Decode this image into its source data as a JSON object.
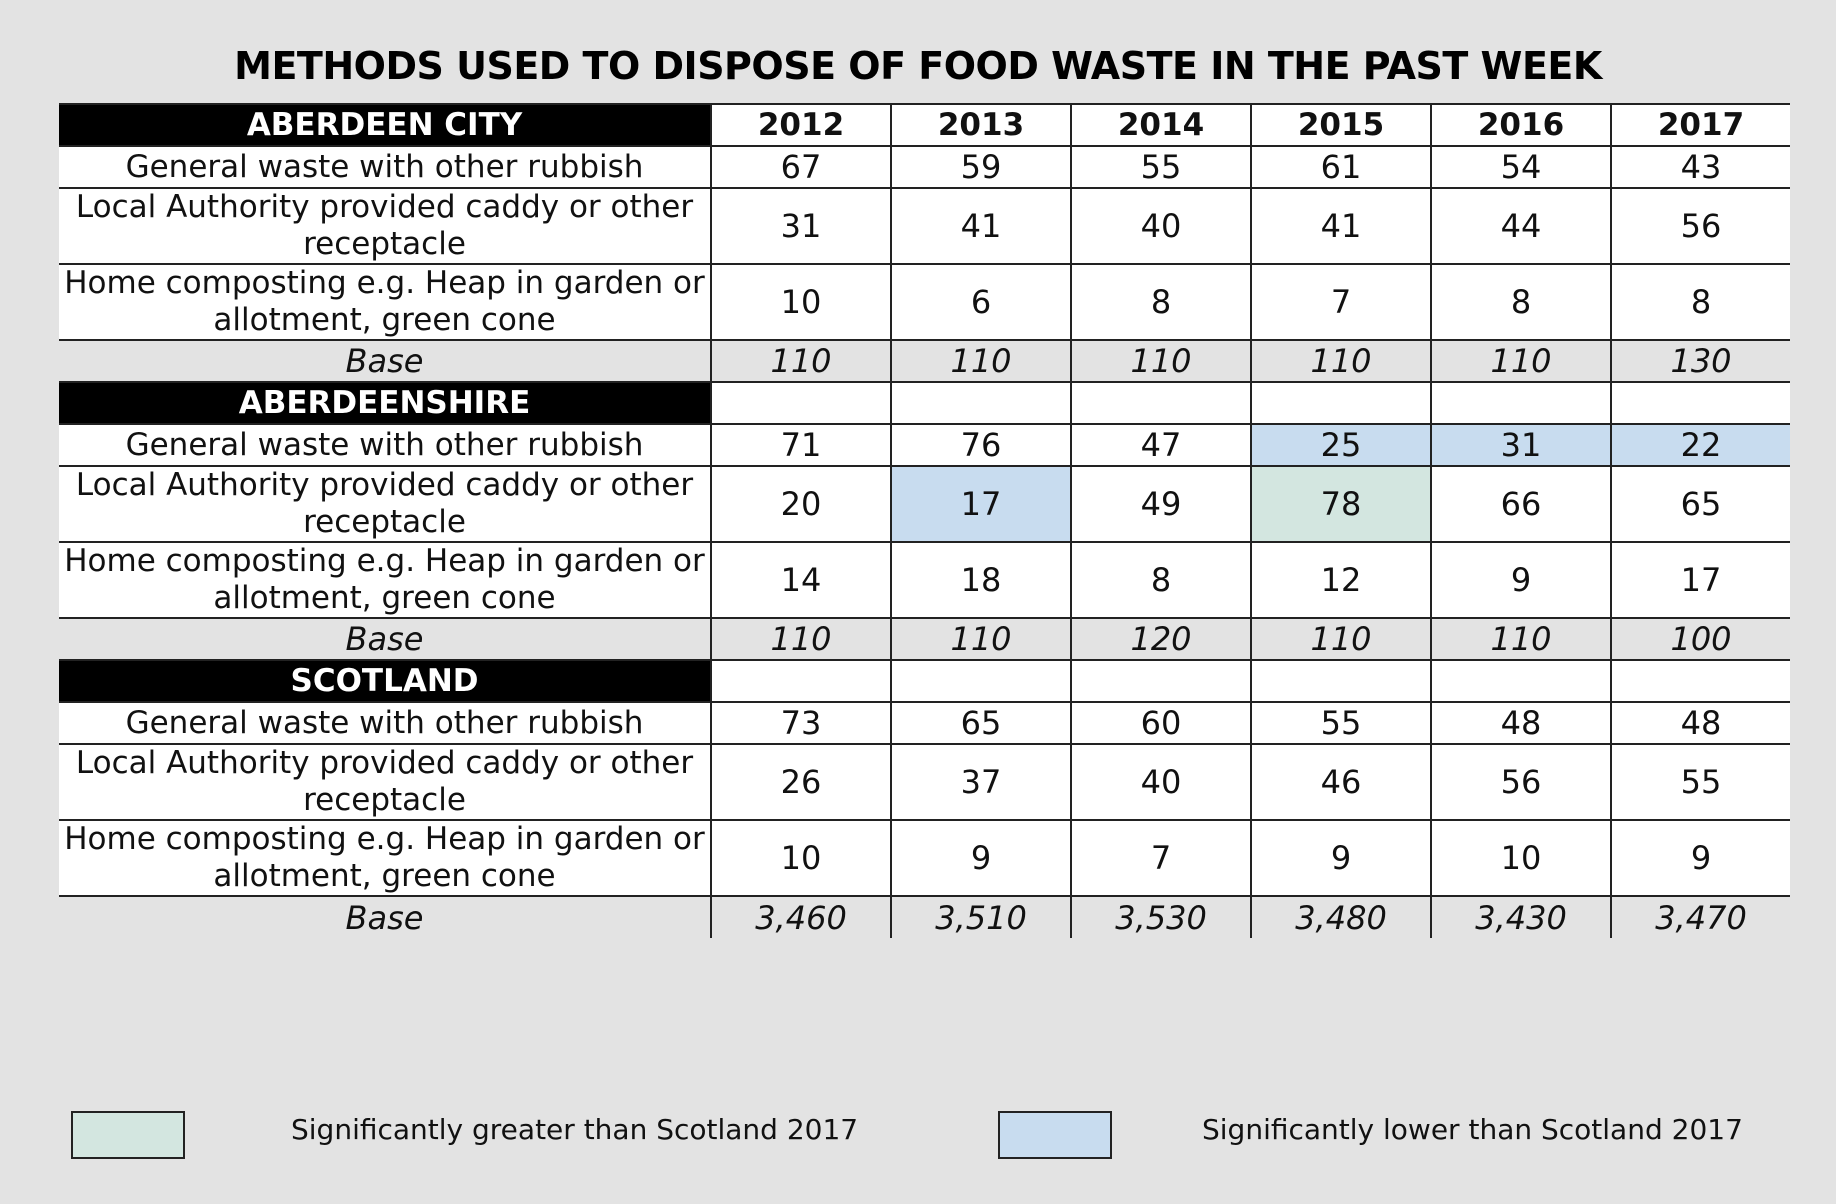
{
  "chart_data": {
    "type": "table",
    "title": "METHODS USED TO DISPOSE OF FOOD WASTE IN THE PAST WEEK",
    "columns": [
      "2012",
      "2013",
      "2014",
      "2015",
      "2016",
      "2017"
    ],
    "sections": [
      {
        "name": "ABERDEEN CITY",
        "rows": [
          {
            "label": "General waste with other rubbish",
            "values": [
              "67",
              "59",
              "55",
              "61",
              "54",
              "43"
            ],
            "highlights": [
              "",
              "",
              "",
              "",
              "",
              ""
            ]
          },
          {
            "label": "Local Authority provided caddy or other receptacle",
            "values": [
              "31",
              "41",
              "40",
              "41",
              "44",
              "56"
            ],
            "highlights": [
              "",
              "",
              "",
              "",
              "",
              ""
            ]
          },
          {
            "label": "Home composting e.g. Heap in garden or allotment, green cone",
            "values": [
              "10",
              "6",
              "8",
              "7",
              "8",
              "8"
            ],
            "highlights": [
              "",
              "",
              "",
              "",
              "",
              ""
            ]
          }
        ],
        "base": {
          "label": "Base",
          "values": [
            "110",
            "110",
            "110",
            "110",
            "110",
            "130"
          ]
        }
      },
      {
        "name": "ABERDEENSHIRE",
        "rows": [
          {
            "label": "General waste with other rubbish",
            "values": [
              "71",
              "76",
              "47",
              "25",
              "31",
              "22"
            ],
            "highlights": [
              "",
              "",
              "",
              "lower",
              "lower",
              "lower"
            ]
          },
          {
            "label": "Local Authority provided caddy or other receptacle",
            "values": [
              "20",
              "17",
              "49",
              "78",
              "66",
              "65"
            ],
            "highlights": [
              "",
              "lower",
              "",
              "greater",
              "",
              ""
            ]
          },
          {
            "label": "Home composting e.g. Heap in garden or allotment, green cone",
            "values": [
              "14",
              "18",
              "8",
              "12",
              "9",
              "17"
            ],
            "highlights": [
              "",
              "",
              "",
              "",
              "",
              ""
            ]
          }
        ],
        "base": {
          "label": "Base",
          "values": [
            "110",
            "110",
            "120",
            "110",
            "110",
            "100"
          ]
        }
      },
      {
        "name": "SCOTLAND",
        "rows": [
          {
            "label": "General waste with other rubbish",
            "values": [
              "73",
              "65",
              "60",
              "55",
              "48",
              "48"
            ],
            "highlights": [
              "",
              "",
              "",
              "",
              "",
              ""
            ]
          },
          {
            "label": "Local Authority provided caddy or other receptacle",
            "values": [
              "26",
              "37",
              "40",
              "46",
              "56",
              "55"
            ],
            "highlights": [
              "",
              "",
              "",
              "",
              "",
              ""
            ]
          },
          {
            "label": "Home composting e.g. Heap in garden or allotment, green cone",
            "values": [
              "10",
              "9",
              "7",
              "9",
              "10",
              "9"
            ],
            "highlights": [
              "",
              "",
              "",
              "",
              "",
              ""
            ]
          }
        ],
        "base": {
          "label": "Base",
          "values": [
            "3,460",
            "3,510",
            "3,530",
            "3,480",
            "3,430",
            "3,470"
          ]
        }
      }
    ]
  },
  "legend": [
    {
      "key": "greater",
      "label": "Significantly greater than Scotland 2017",
      "color": "#d3e6e0"
    },
    {
      "key": "lower",
      "label": "Significantly lower than Scotland 2017",
      "color": "#c8dcef"
    }
  ]
}
